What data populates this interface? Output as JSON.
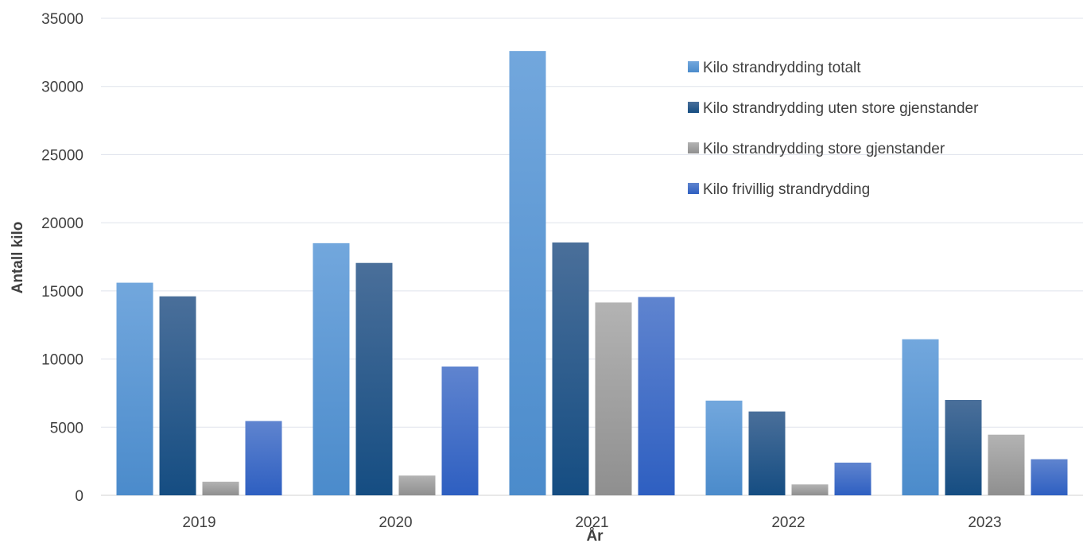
{
  "chart_data": {
    "type": "bar",
    "title": "",
    "xlabel": "År",
    "ylabel": "Antall kilo",
    "ylim": [
      0,
      35000
    ],
    "yticks": [
      0,
      5000,
      10000,
      15000,
      20000,
      25000,
      30000,
      35000
    ],
    "categories": [
      "2019",
      "2020",
      "2021",
      "2022",
      "2023"
    ],
    "series": [
      {
        "name": "Kilo strandrydding totalt",
        "color": "#5b9bd5",
        "values": [
          15600,
          18500,
          32600,
          6950,
          11450
        ]
      },
      {
        "name": "Kilo strandrydding uten store gjenstander",
        "color": "#1f5a8e",
        "values": [
          14600,
          17050,
          18550,
          6150,
          7000
        ]
      },
      {
        "name": "Kilo strandrydding store gjenstander",
        "color": "#a5a5a5",
        "values": [
          1000,
          1450,
          14150,
          800,
          4450
        ]
      },
      {
        "name": "Kilo frivillig strandrydding",
        "color": "#4472c4",
        "values": [
          5450,
          9450,
          14550,
          2400,
          2650
        ]
      }
    ],
    "grid": true,
    "legend_position": "top-right"
  }
}
